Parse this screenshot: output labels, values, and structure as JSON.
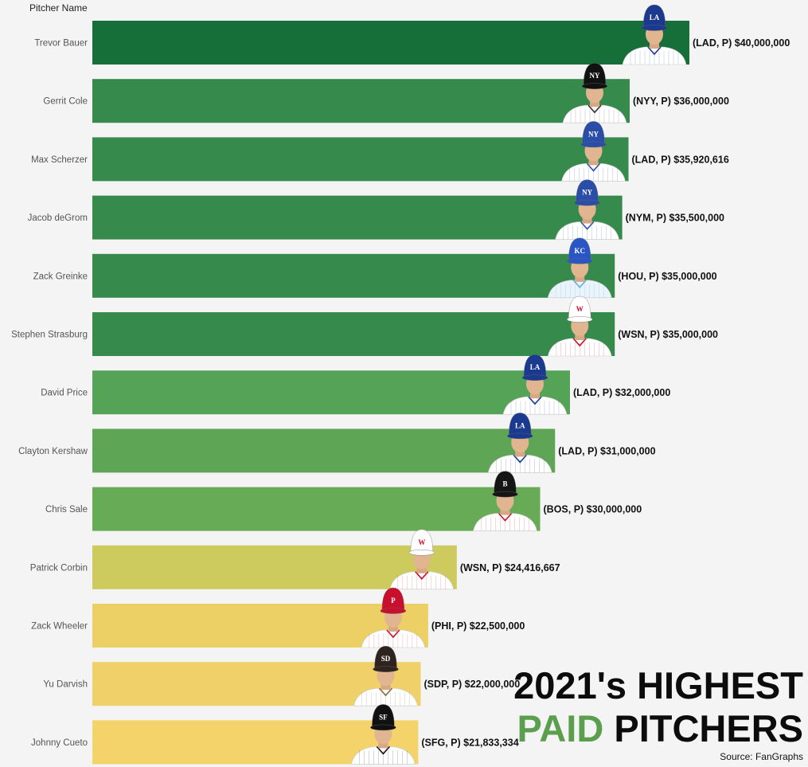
{
  "chart_data": {
    "type": "bar",
    "orientation": "horizontal",
    "ylabel": "Pitcher Name",
    "title_line1": "2021's HIGHEST",
    "title_accent": "PAID",
    "title_rest": "PITCHERS",
    "source": "Source: FanGraphs",
    "xlim": [
      0,
      40000000
    ],
    "categories": [
      "Trevor Bauer",
      "Gerrit Cole",
      "Max Scherzer",
      "Jacob deGrom",
      "Zack Greinke",
      "Stephen Strasburg",
      "David Price",
      "Clayton Kershaw",
      "Chris Sale",
      "Patrick Corbin",
      "Zack Wheeler",
      "Yu Darvish",
      "Johnny Cueto"
    ],
    "values": [
      40000000,
      36000000,
      35920616,
      35500000,
      35000000,
      35000000,
      32000000,
      31000000,
      30000000,
      24416667,
      22500000,
      22000000,
      21833334
    ],
    "labels": [
      "(LAD, P) $40,000,000",
      "(NYY, P) $36,000,000",
      "(LAD, P) $35,920,616",
      "(NYM, P) $35,500,000",
      "(HOU, P) $35,000,000",
      "(WSN, P) $35,000,000",
      "(LAD, P) $32,000,000",
      "(LAD, P) $31,000,000",
      "(BOS, P) $30,000,000",
      "(WSN, P) $24,416,667",
      "(PHI, P) $22,500,000",
      "(SDP, P) $22,000,000",
      "(SFG, P) $21,833,334"
    ],
    "bar_colors": [
      "#166e38",
      "#358a4c",
      "#358a4c",
      "#358a4c",
      "#358a4c",
      "#358a4c",
      "#55a357",
      "#5ea656",
      "#67ab56",
      "#cdca5e",
      "#ecd066",
      "#f0d068",
      "#f3d36a"
    ],
    "caps": [
      {
        "color": "#1b3a8f",
        "letter": "LA",
        "jersey": "#ffffff",
        "trim": "#1b3a8f"
      },
      {
        "color": "#111111",
        "letter": "NY",
        "jersey": "#ffffff",
        "trim": "#333333"
      },
      {
        "color": "#2a4ea8",
        "letter": "NY",
        "jersey": "#ffffff",
        "trim": "#2a4ea8"
      },
      {
        "color": "#2a4ea8",
        "letter": "NY",
        "jersey": "#ffffff",
        "trim": "#2a4ea8"
      },
      {
        "color": "#2a56c4",
        "letter": "KC",
        "jersey": "#e9f3fb",
        "trim": "#6ab0e0"
      },
      {
        "color": "#ffffff",
        "letter": "W",
        "jersey": "#ffffff",
        "trim": "#c8102e"
      },
      {
        "color": "#1b3a8f",
        "letter": "LA",
        "jersey": "#ffffff",
        "trim": "#1b3a8f"
      },
      {
        "color": "#1b3a8f",
        "letter": "LA",
        "jersey": "#ffffff",
        "trim": "#1b3a8f"
      },
      {
        "color": "#151515",
        "letter": "B",
        "jersey": "#ffffff",
        "trim": "#c8102e"
      },
      {
        "color": "#ffffff",
        "letter": "W",
        "jersey": "#ffffff",
        "trim": "#c8102e"
      },
      {
        "color": "#c8102e",
        "letter": "P",
        "jersey": "#ffffff",
        "trim": "#c8102e"
      },
      {
        "color": "#2f241d",
        "letter": "SD",
        "jersey": "#ffffff",
        "trim": "#8a6d3b"
      },
      {
        "color": "#111111",
        "letter": "SF",
        "jersey": "#ffffff",
        "trim": "#111111"
      }
    ]
  }
}
